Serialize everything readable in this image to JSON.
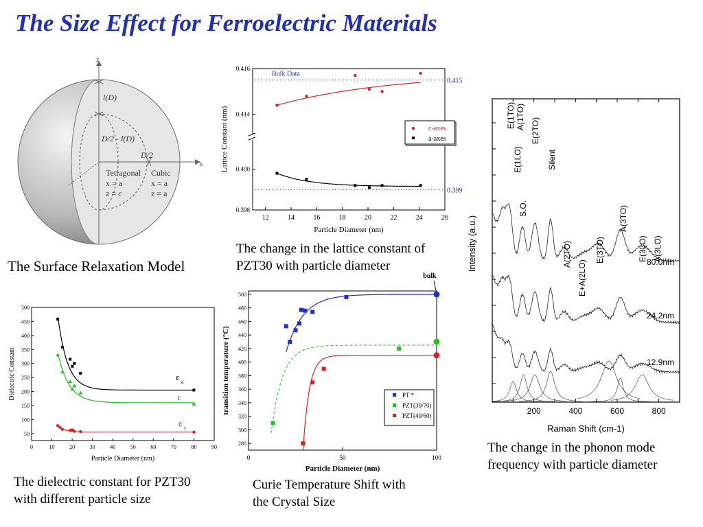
{
  "title": "The Size Effect for Ferroelectric Materials",
  "captions": {
    "surface_model": "The Surface Relaxation Model",
    "lattice": [
      "The change in the lattice constant of",
      "PZT30 with particle diameter"
    ],
    "phonon": [
      "The change in the phonon  mode",
      "frequency with particle diameter"
    ],
    "dielectric": [
      "The dielectric constant for PZT30",
      "with different particle size"
    ],
    "curie": [
      "Curie Temperature Shift with",
      "the Crystal Size"
    ]
  },
  "sphere": {
    "z_axis": "z",
    "x_axis": "x",
    "l_label": "l(D)",
    "d_label_1": "D/2 - l(D)",
    "d_label_2": "D/2",
    "tetragonal": "Tetragonal",
    "tet_x": "x = a",
    "tet_z": "z = c",
    "cubic": "Cubic",
    "cub_x": "x = a",
    "cub_z": "z = a"
  },
  "chart_data": [
    {
      "id": "lattice",
      "type": "scatter",
      "xlabel": "Particle Diameter (nm)",
      "ylabel": "Lattice Constant (nm)",
      "xlim": [
        11,
        26
      ],
      "xticks": [
        "12",
        "14",
        "16",
        "18",
        "20",
        "22",
        "24",
        "26"
      ],
      "yticks_upper": [
        "0.416",
        "0.414"
      ],
      "yticks_lower": [
        "0.400",
        "0.398"
      ],
      "bulk_label": "Bulk Data",
      "ref_upper": "0.415",
      "ref_lower": "0.399",
      "legend": [
        "c-axes",
        "a-axes"
      ],
      "colors": {
        "c": "#e02020",
        "a": "#000000",
        "ref": "#2030c0"
      },
      "series": [
        {
          "name": "c-axes",
          "x": [
            12.9,
            15.2,
            19.0,
            20.1,
            21.1,
            24.1
          ],
          "y": [
            0.4144,
            0.4148,
            0.4157,
            0.4151,
            0.415,
            0.4158
          ]
        },
        {
          "name": "a-axes",
          "x": [
            12.9,
            15.2,
            19.0,
            20.1,
            21.1,
            24.1
          ],
          "y": [
            0.3998,
            0.3995,
            0.3992,
            0.3991,
            0.3992,
            0.3992
          ]
        }
      ]
    },
    {
      "id": "raman",
      "type": "line",
      "xlabel": "Raman Shift (cm-1)",
      "ylabel": "Intensity (a.u.)",
      "xlim": [
        0,
        900
      ],
      "xticks": [
        "200",
        "400",
        "600",
        "800"
      ],
      "peak_labels": [
        "E(1TO)",
        "A(1TO)",
        "E(1LO)",
        "E(2TO)",
        "S.O.",
        "Silent",
        "A(2TO)",
        "E+A(2LO)",
        "E(3TO)",
        "A(3TO)",
        "E(3LO)",
        "A(3LO)"
      ],
      "series": [
        {
          "name": "80.0nm"
        },
        {
          "name": "24.2nm"
        },
        {
          "name": "12.9nm"
        }
      ]
    },
    {
      "id": "dielectric",
      "type": "scatter",
      "xlabel": "Particle Diameter (nm)",
      "ylabel": "Dielectric Constant",
      "xlim": [
        0,
        90
      ],
      "ylim": [
        0,
        500
      ],
      "xticks": [
        "0",
        "10",
        "20",
        "30",
        "40",
        "50",
        "60",
        "70",
        "80",
        "90"
      ],
      "yticks": [
        "50",
        "100",
        "150",
        "200",
        "250",
        "300",
        "350",
        "400",
        "450",
        "500"
      ],
      "labels": {
        "ea": "ε",
        "ea_sub": "a",
        "e": "ε",
        "ec": "ε",
        "ec_sub": "c"
      },
      "colors": {
        "ea": "#000000",
        "e": "#22c022",
        "ec": "#e02020"
      },
      "series": [
        {
          "name": "εa",
          "x": [
            12.9,
            15.2,
            19.0,
            20.1,
            21.1,
            24.1,
            80
          ],
          "y": [
            458,
            358,
            315,
            290,
            300,
            265,
            205
          ]
        },
        {
          "name": "ε",
          "x": [
            12.9,
            15.2,
            19.0,
            20.1,
            21.1,
            24.1,
            80
          ],
          "y": [
            330,
            270,
            235,
            208,
            220,
            195,
            155
          ]
        },
        {
          "name": "εc",
          "x": [
            12.9,
            14.0,
            15.2,
            19.0,
            20.1,
            21.1,
            24.1,
            80
          ],
          "y": [
            78,
            72,
            65,
            62,
            63,
            58,
            57,
            55
          ]
        }
      ]
    },
    {
      "id": "curie",
      "type": "scatter",
      "xlabel": "Particle Diameter (nm)",
      "ylabel": "transition temperature (°C)",
      "xlim": [
        0,
        100
      ],
      "ylim": [
        270,
        505
      ],
      "xticks": [
        "0",
        "50",
        "100"
      ],
      "yticks": [
        "280",
        "300",
        "320",
        "340",
        "360",
        "380",
        "400",
        "420",
        "440",
        "460",
        "480",
        "500"
      ],
      "bulk_label": "bulk",
      "legend": [
        "PT *",
        "PZT(30/70)",
        "PZT(40/60)"
      ],
      "colors": {
        "PT": "#1d2fd0",
        "PZT3070": "#22c022",
        "PZT4060": "#e02020"
      },
      "series": [
        {
          "name": "PT *",
          "x": [
            20,
            22,
            25,
            27,
            28,
            30,
            34,
            52,
            100
          ],
          "y": [
            453,
            430,
            447,
            457,
            477,
            476,
            474,
            496,
            500
          ]
        },
        {
          "name": "PZT(30/70)",
          "x": [
            13,
            80,
            100
          ],
          "y": [
            310,
            420,
            430
          ]
        },
        {
          "name": "PZT(40/60)",
          "x": [
            29,
            34,
            40,
            100
          ],
          "y": [
            280,
            370,
            390,
            410
          ]
        }
      ]
    }
  ]
}
